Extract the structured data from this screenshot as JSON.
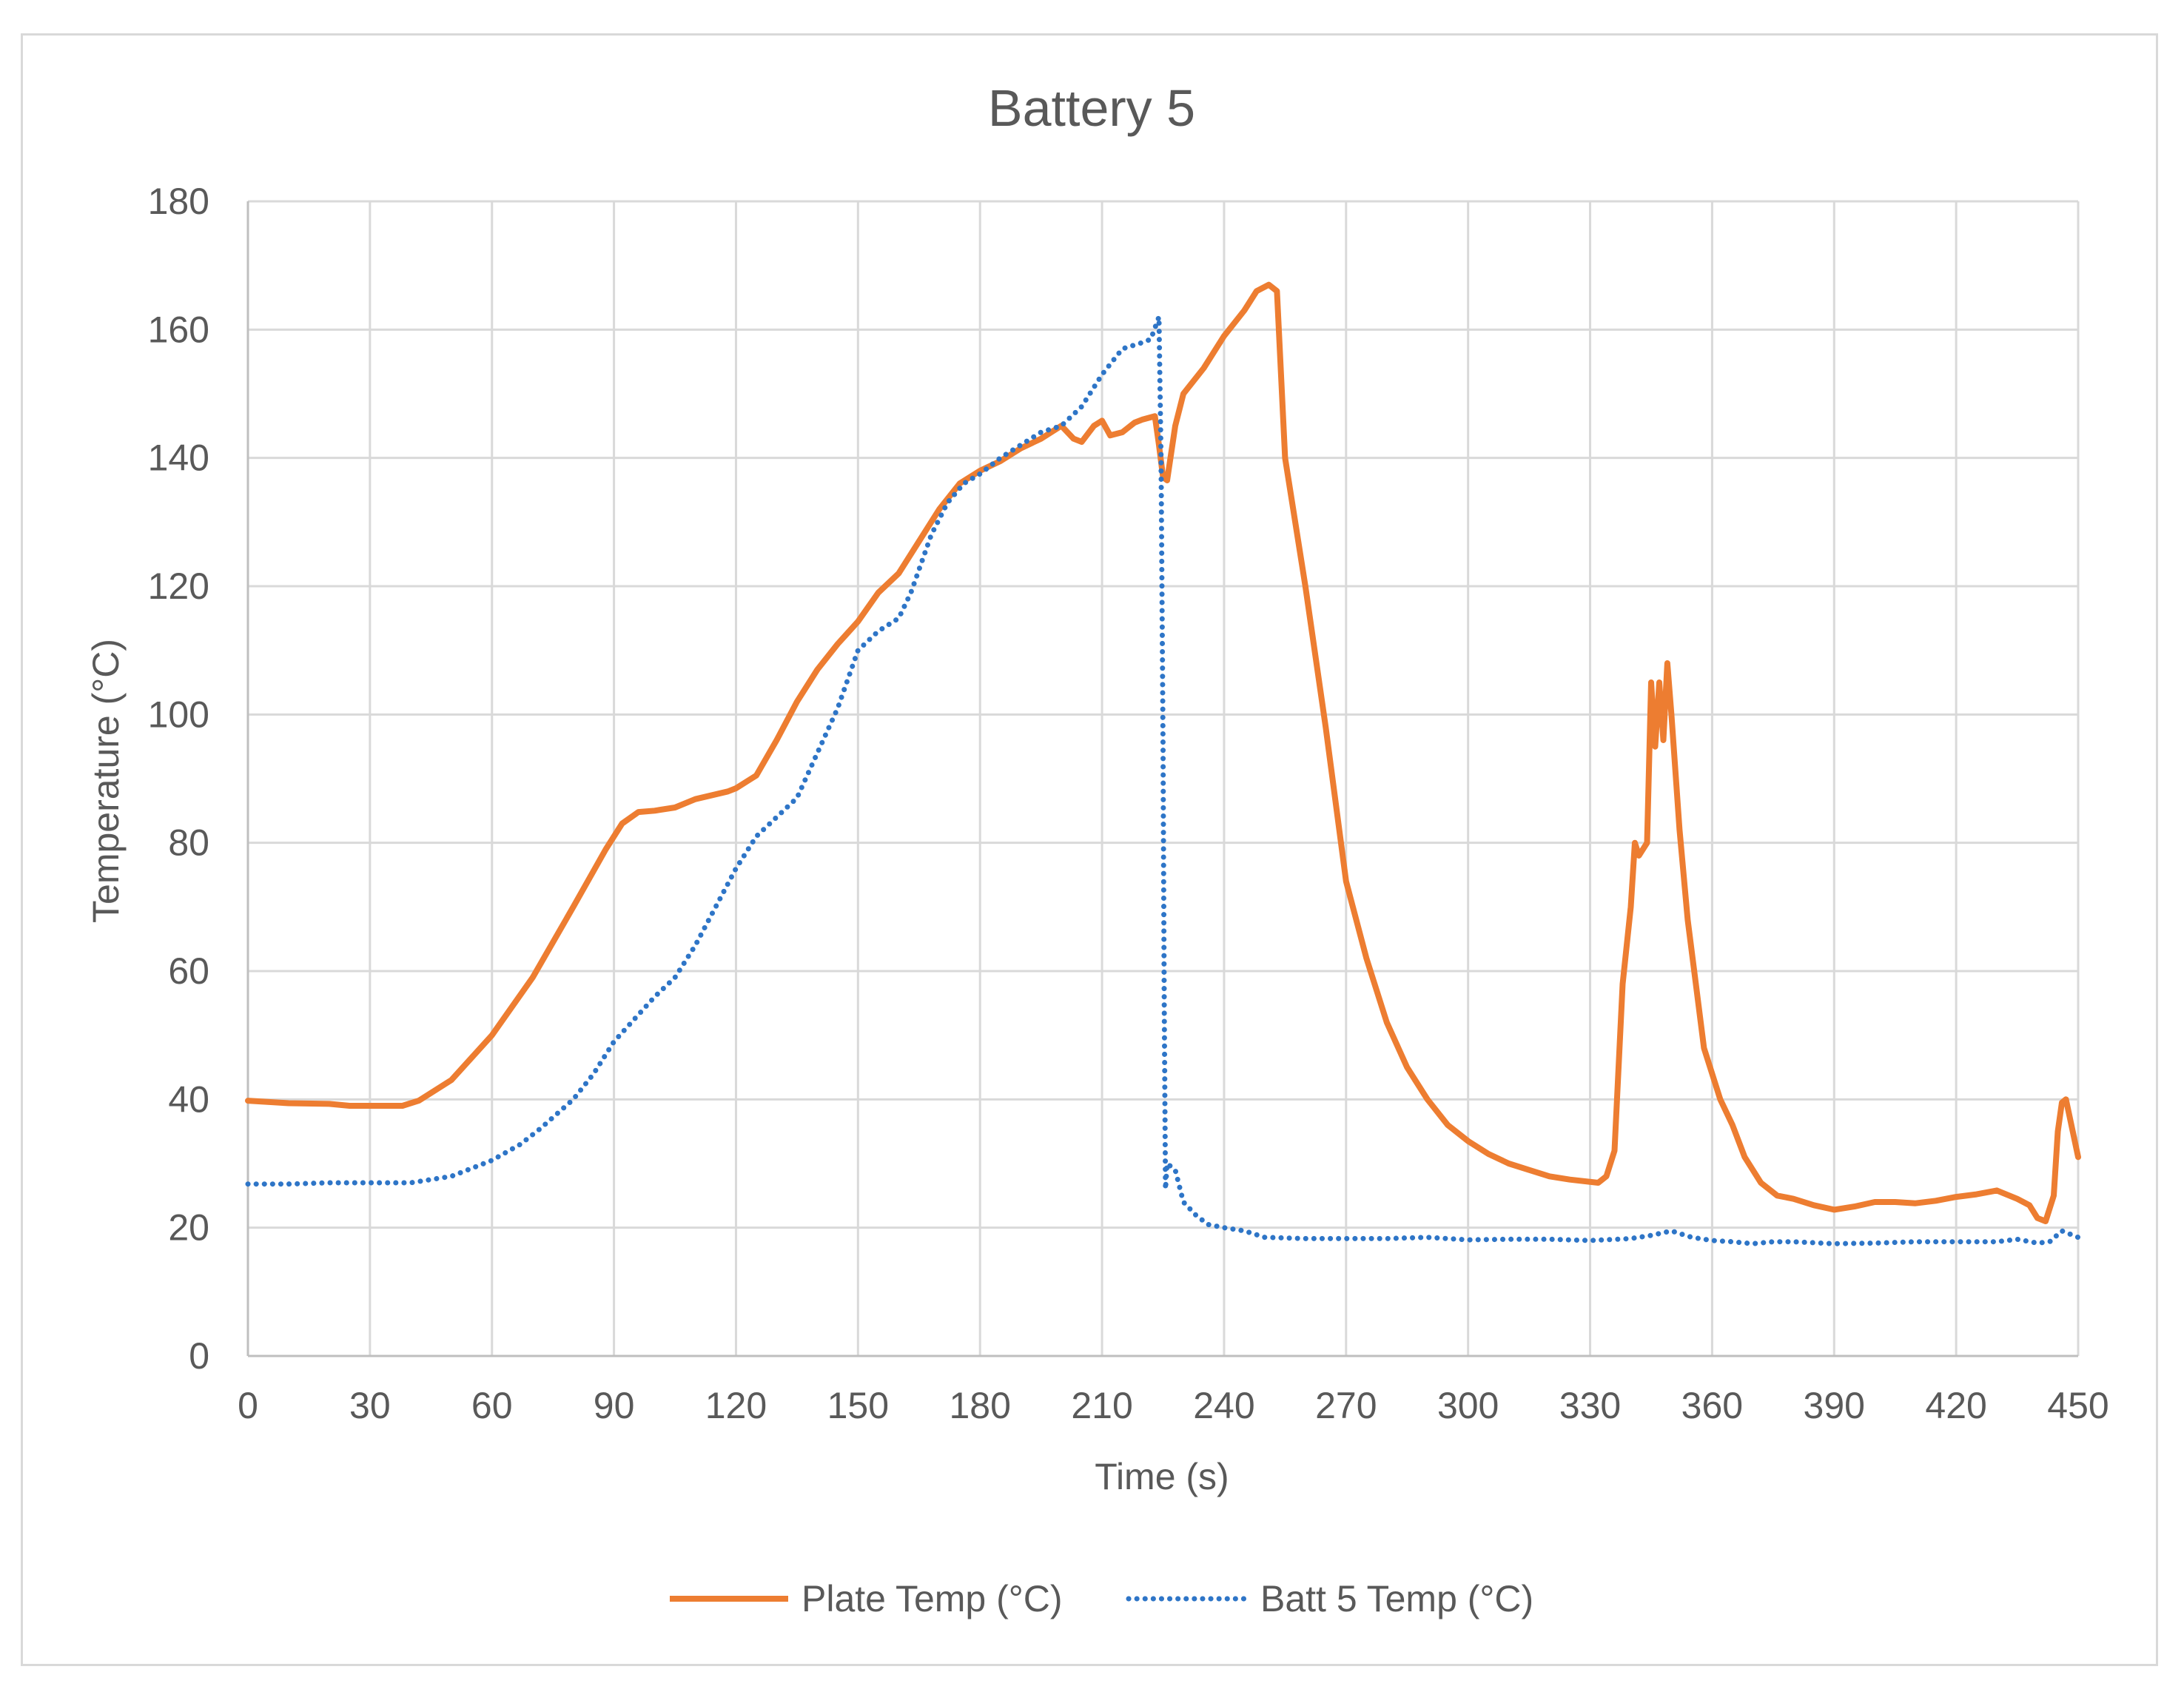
{
  "chart_data": {
    "type": "line",
    "title": "Battery 5",
    "xlabel": "Time (s)",
    "ylabel": "Temperature (°C)",
    "xlim": [
      0,
      450
    ],
    "ylim": [
      0,
      180
    ],
    "xticks": [
      0,
      30,
      60,
      90,
      120,
      150,
      180,
      210,
      240,
      270,
      300,
      330,
      360,
      390,
      420,
      450
    ],
    "yticks": [
      0,
      20,
      40,
      60,
      80,
      100,
      120,
      140,
      160,
      180
    ],
    "grid": true,
    "legend_position": "bottom",
    "series": [
      {
        "name": "Plate Temp (°C)",
        "color": "#ED7D31",
        "style": "solid",
        "points": [
          [
            0,
            39.8
          ],
          [
            10,
            39.4
          ],
          [
            20,
            39.3
          ],
          [
            25,
            39.0
          ],
          [
            38,
            39.0
          ],
          [
            42,
            39.8
          ],
          [
            50,
            43
          ],
          [
            60,
            50
          ],
          [
            70,
            59
          ],
          [
            80,
            70
          ],
          [
            88,
            79
          ],
          [
            92,
            83
          ],
          [
            96,
            84.8
          ],
          [
            100,
            85
          ],
          [
            105,
            85.5
          ],
          [
            110,
            86.8
          ],
          [
            118,
            88
          ],
          [
            120,
            88.5
          ],
          [
            125,
            90.5
          ],
          [
            130,
            96
          ],
          [
            135,
            102
          ],
          [
            140,
            107
          ],
          [
            145,
            111
          ],
          [
            150,
            114.5
          ],
          [
            155,
            119
          ],
          [
            160,
            122
          ],
          [
            165,
            127
          ],
          [
            170,
            132
          ],
          [
            175,
            136
          ],
          [
            180,
            138
          ],
          [
            185,
            139.5
          ],
          [
            190,
            141.5
          ],
          [
            195,
            143
          ],
          [
            200,
            145
          ],
          [
            203,
            143
          ],
          [
            205,
            142.5
          ],
          [
            208,
            145
          ],
          [
            210,
            145.8
          ],
          [
            212,
            143.5
          ],
          [
            215,
            144
          ],
          [
            218,
            145.5
          ],
          [
            220,
            146
          ],
          [
            223,
            146.5
          ],
          [
            224,
            142
          ],
          [
            225,
            137
          ],
          [
            226,
            136.5
          ],
          [
            228,
            145
          ],
          [
            230,
            150
          ],
          [
            235,
            154
          ],
          [
            240,
            159
          ],
          [
            245,
            163
          ],
          [
            248,
            166
          ],
          [
            251,
            167
          ],
          [
            253,
            166
          ],
          [
            255,
            140
          ],
          [
            260,
            120
          ],
          [
            265,
            98
          ],
          [
            270,
            74
          ],
          [
            275,
            62
          ],
          [
            280,
            52
          ],
          [
            285,
            45
          ],
          [
            290,
            40
          ],
          [
            295,
            36
          ],
          [
            300,
            33.5
          ],
          [
            305,
            31.5
          ],
          [
            310,
            30
          ],
          [
            315,
            29
          ],
          [
            320,
            28
          ],
          [
            325,
            27.5
          ],
          [
            332,
            27
          ],
          [
            334,
            28
          ],
          [
            336,
            32
          ],
          [
            338,
            58
          ],
          [
            340,
            70
          ],
          [
            341,
            80
          ],
          [
            342,
            78
          ],
          [
            344,
            80
          ],
          [
            345,
            105
          ],
          [
            346,
            95
          ],
          [
            347,
            105
          ],
          [
            348,
            96
          ],
          [
            349,
            108
          ],
          [
            350,
            100
          ],
          [
            352,
            82
          ],
          [
            354,
            68
          ],
          [
            356,
            58
          ],
          [
            358,
            48
          ],
          [
            362,
            40
          ],
          [
            365,
            36
          ],
          [
            368,
            31
          ],
          [
            372,
            27
          ],
          [
            376,
            25
          ],
          [
            380,
            24.5
          ],
          [
            385,
            23.5
          ],
          [
            390,
            22.8
          ],
          [
            395,
            23.3
          ],
          [
            400,
            24
          ],
          [
            405,
            24
          ],
          [
            410,
            23.8
          ],
          [
            415,
            24.2
          ],
          [
            420,
            24.8
          ],
          [
            425,
            25.2
          ],
          [
            430,
            25.8
          ],
          [
            435,
            24.5
          ],
          [
            438,
            23.5
          ],
          [
            440,
            21.5
          ],
          [
            442,
            21
          ],
          [
            443,
            23
          ],
          [
            444,
            25
          ],
          [
            445,
            35
          ],
          [
            446,
            39.5
          ],
          [
            447,
            40
          ],
          [
            448,
            37
          ],
          [
            450,
            31
          ]
        ]
      },
      {
        "name": "Batt 5 Temp (°C)",
        "color": "#2E75C7",
        "style": "dotted",
        "points": [
          [
            0,
            26.8
          ],
          [
            10,
            26.8
          ],
          [
            20,
            27
          ],
          [
            30,
            27
          ],
          [
            40,
            27
          ],
          [
            50,
            28
          ],
          [
            60,
            30.5
          ],
          [
            67,
            33
          ],
          [
            72,
            35.5
          ],
          [
            80,
            40
          ],
          [
            85,
            44
          ],
          [
            90,
            49
          ],
          [
            95,
            52.5
          ],
          [
            100,
            56
          ],
          [
            105,
            59
          ],
          [
            110,
            64
          ],
          [
            115,
            70
          ],
          [
            120,
            76
          ],
          [
            125,
            81
          ],
          [
            130,
            84
          ],
          [
            135,
            87
          ],
          [
            140,
            94
          ],
          [
            145,
            101
          ],
          [
            150,
            110
          ],
          [
            155,
            113
          ],
          [
            160,
            115
          ],
          [
            163,
            119
          ],
          [
            168,
            128
          ],
          [
            172,
            133
          ],
          [
            176,
            136
          ],
          [
            180,
            137.5
          ],
          [
            185,
            140
          ],
          [
            190,
            142
          ],
          [
            195,
            144
          ],
          [
            200,
            145
          ],
          [
            205,
            148
          ],
          [
            210,
            153
          ],
          [
            215,
            157
          ],
          [
            220,
            158
          ],
          [
            222,
            158.5
          ],
          [
            224,
            162
          ],
          [
            224.5,
            140
          ],
          [
            225,
            95
          ],
          [
            225.3,
            55
          ],
          [
            225.6,
            26
          ],
          [
            226,
            30
          ],
          [
            228,
            29
          ],
          [
            230,
            24
          ],
          [
            233,
            22
          ],
          [
            236,
            20.5
          ],
          [
            240,
            20
          ],
          [
            245,
            19.5
          ],
          [
            250,
            18.5
          ],
          [
            260,
            18.3
          ],
          [
            270,
            18.3
          ],
          [
            280,
            18.3
          ],
          [
            290,
            18.5
          ],
          [
            300,
            18.1
          ],
          [
            310,
            18.2
          ],
          [
            320,
            18.2
          ],
          [
            330,
            18
          ],
          [
            340,
            18.3
          ],
          [
            345,
            18.8
          ],
          [
            350,
            19.5
          ],
          [
            355,
            18.5
          ],
          [
            360,
            18
          ],
          [
            365,
            17.8
          ],
          [
            370,
            17.5
          ],
          [
            375,
            17.8
          ],
          [
            380,
            17.8
          ],
          [
            390,
            17.5
          ],
          [
            400,
            17.6
          ],
          [
            410,
            17.8
          ],
          [
            420,
            17.8
          ],
          [
            430,
            17.8
          ],
          [
            435,
            18.2
          ],
          [
            440,
            17.6
          ],
          [
            443,
            17.8
          ],
          [
            446,
            19.5
          ],
          [
            450,
            18.5
          ]
        ]
      }
    ]
  }
}
